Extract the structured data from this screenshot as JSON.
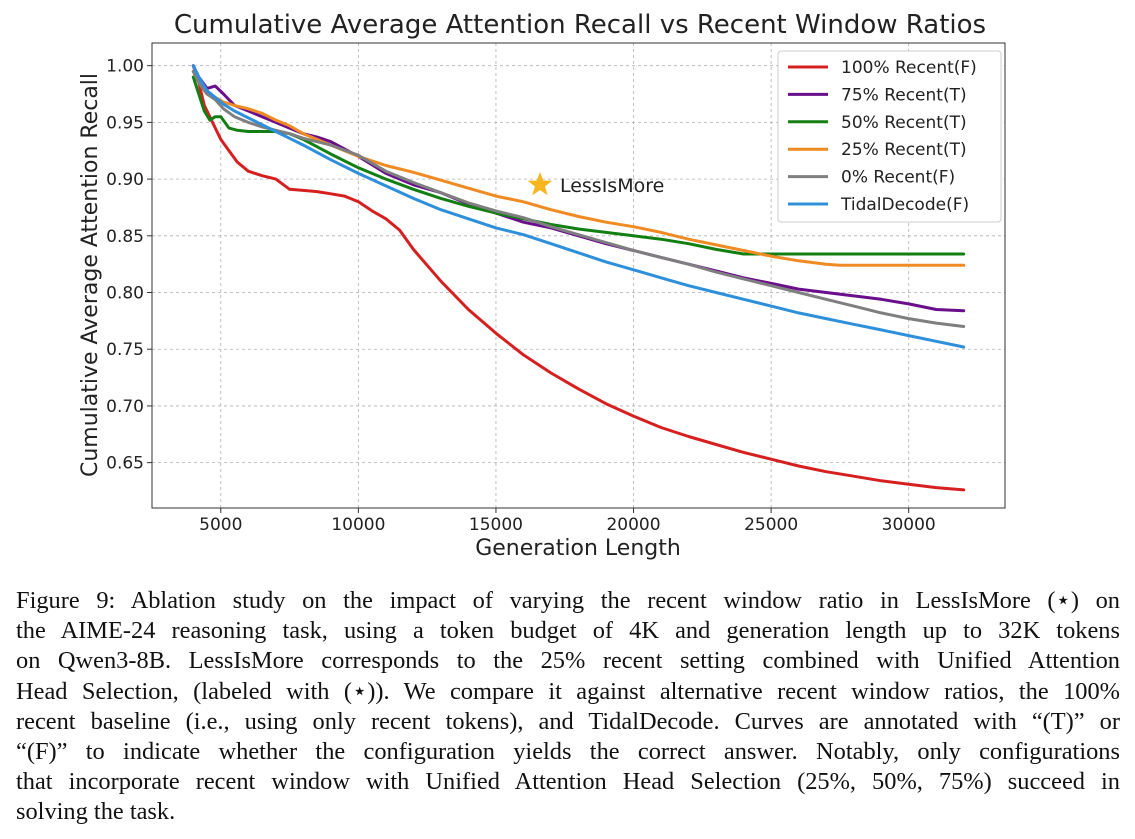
{
  "chart_data": {
    "type": "line",
    "title": "Cumulative Average Attention Recall vs Recent Window Ratios",
    "xlabel": "Generation Length",
    "ylabel": "Cumulative Average Attention Recall",
    "xlim": [
      2500,
      33500
    ],
    "ylim": [
      0.61,
      1.02
    ],
    "xticks": [
      5000,
      10000,
      15000,
      20000,
      25000,
      30000
    ],
    "xtick_labels": [
      "5000",
      "10000",
      "15000",
      "20000",
      "25000",
      "30000"
    ],
    "yticks": [
      0.65,
      0.7,
      0.75,
      0.8,
      0.85,
      0.9,
      0.95,
      1.0
    ],
    "ytick_labels": [
      "0.65",
      "0.70",
      "0.75",
      "0.80",
      "0.85",
      "0.90",
      "0.95",
      "1.00"
    ],
    "grid": true,
    "legend_position": "top-right",
    "series": [
      {
        "name": "100% Recent(F)",
        "color": "#d62020",
        "x": [
          4000,
          4200,
          4400,
          4600,
          4800,
          5000,
          5300,
          5600,
          6000,
          6500,
          7000,
          7500,
          8000,
          8500,
          9000,
          9500,
          10000,
          10500,
          11000,
          11500,
          12000,
          13000,
          14000,
          15000,
          16000,
          17000,
          18000,
          19000,
          20000,
          21000,
          22000,
          23000,
          24000,
          25000,
          26000,
          27000,
          28000,
          29000,
          30000,
          31000,
          32000
        ],
        "values": [
          1.0,
          0.985,
          0.965,
          0.955,
          0.945,
          0.935,
          0.925,
          0.915,
          0.907,
          0.903,
          0.9,
          0.891,
          0.89,
          0.889,
          0.887,
          0.885,
          0.88,
          0.872,
          0.865,
          0.855,
          0.838,
          0.81,
          0.785,
          0.764,
          0.745,
          0.729,
          0.715,
          0.702,
          0.691,
          0.681,
          0.673,
          0.666,
          0.659,
          0.653,
          0.647,
          0.642,
          0.638,
          0.634,
          0.631,
          0.628,
          0.626
        ]
      },
      {
        "name": "75% Recent(T)",
        "color": "#6a0e8c",
        "x": [
          4000,
          4200,
          4500,
          4800,
          5100,
          5500,
          6000,
          6500,
          7000,
          7500,
          8000,
          8500,
          9000,
          10000,
          11000,
          12000,
          13000,
          14000,
          15000,
          16000,
          17000,
          18000,
          19000,
          20000,
          21000,
          22000,
          23000,
          24000,
          25000,
          26000,
          27000,
          28000,
          29000,
          30000,
          31000,
          32000
        ],
        "values": [
          1.0,
          0.99,
          0.98,
          0.982,
          0.975,
          0.965,
          0.96,
          0.955,
          0.95,
          0.945,
          0.94,
          0.937,
          0.933,
          0.92,
          0.905,
          0.895,
          0.888,
          0.878,
          0.87,
          0.862,
          0.857,
          0.85,
          0.843,
          0.837,
          0.831,
          0.825,
          0.819,
          0.813,
          0.808,
          0.803,
          0.8,
          0.797,
          0.794,
          0.79,
          0.785,
          0.784
        ]
      },
      {
        "name": "50% Recent(T)",
        "color": "#137f13",
        "x": [
          4000,
          4200,
          4400,
          4600,
          4800,
          5000,
          5300,
          5600,
          6000,
          6500,
          7000,
          7500,
          8000,
          9000,
          10000,
          11000,
          12000,
          13000,
          14000,
          15000,
          16000,
          17000,
          18000,
          19000,
          20000,
          21000,
          22000,
          23000,
          24000,
          25000,
          26000,
          27000,
          28000,
          30000,
          32000
        ],
        "values": [
          0.99,
          0.975,
          0.96,
          0.952,
          0.955,
          0.955,
          0.945,
          0.943,
          0.942,
          0.942,
          0.942,
          0.94,
          0.935,
          0.922,
          0.91,
          0.9,
          0.891,
          0.883,
          0.876,
          0.87,
          0.865,
          0.86,
          0.856,
          0.853,
          0.85,
          0.847,
          0.843,
          0.838,
          0.834,
          0.834,
          0.834,
          0.834,
          0.834,
          0.834,
          0.834
        ]
      },
      {
        "name": "25% Recent(T)",
        "color": "#f08a22",
        "x": [
          4000,
          4200,
          4500,
          4800,
          5100,
          5500,
          6000,
          6500,
          7000,
          7500,
          8000,
          9000,
          10000,
          11000,
          12000,
          13000,
          14000,
          15000,
          16000,
          17000,
          18000,
          19000,
          20000,
          21000,
          22000,
          23000,
          24000,
          25000,
          26000,
          27000,
          27500,
          28000,
          30000,
          32000
        ],
        "values": [
          0.995,
          0.985,
          0.975,
          0.972,
          0.968,
          0.965,
          0.962,
          0.958,
          0.952,
          0.947,
          0.94,
          0.93,
          0.92,
          0.912,
          0.906,
          0.899,
          0.892,
          0.885,
          0.88,
          0.873,
          0.867,
          0.862,
          0.858,
          0.853,
          0.847,
          0.842,
          0.837,
          0.832,
          0.828,
          0.825,
          0.824,
          0.824,
          0.824,
          0.824
        ]
      },
      {
        "name": "0% Recent(F)",
        "color": "#7f7f7f",
        "x": [
          4000,
          4200,
          4500,
          4800,
          5100,
          5500,
          6000,
          6500,
          7000,
          7500,
          8000,
          9000,
          10000,
          11000,
          12000,
          13000,
          14000,
          15000,
          16000,
          17000,
          18000,
          19000,
          20000,
          21000,
          22000,
          23000,
          24000,
          25000,
          26000,
          27000,
          28000,
          29000,
          30000,
          31000,
          32000
        ],
        "values": [
          0.995,
          0.985,
          0.975,
          0.97,
          0.962,
          0.955,
          0.95,
          0.946,
          0.943,
          0.94,
          0.936,
          0.93,
          0.921,
          0.907,
          0.897,
          0.888,
          0.879,
          0.872,
          0.866,
          0.858,
          0.851,
          0.844,
          0.837,
          0.831,
          0.825,
          0.818,
          0.812,
          0.806,
          0.8,
          0.794,
          0.788,
          0.782,
          0.777,
          0.773,
          0.77
        ]
      },
      {
        "name": "TidalDecode(F)",
        "color": "#2e8fdb",
        "x": [
          4000,
          4200,
          4500,
          4800,
          5100,
          5500,
          6000,
          6500,
          7000,
          7500,
          8000,
          9000,
          10000,
          11000,
          12000,
          13000,
          14000,
          15000,
          16000,
          17000,
          18000,
          19000,
          20000,
          21000,
          22000,
          23000,
          24000,
          25000,
          26000,
          27000,
          28000,
          29000,
          30000,
          31000,
          32000
        ],
        "values": [
          1.0,
          0.99,
          0.978,
          0.972,
          0.966,
          0.96,
          0.954,
          0.948,
          0.942,
          0.936,
          0.93,
          0.917,
          0.905,
          0.894,
          0.883,
          0.873,
          0.865,
          0.857,
          0.851,
          0.843,
          0.835,
          0.827,
          0.82,
          0.813,
          0.806,
          0.8,
          0.794,
          0.788,
          0.782,
          0.777,
          0.772,
          0.767,
          0.762,
          0.757,
          0.752
        ]
      }
    ],
    "annotation": {
      "label": "LessIsMore",
      "x": 16600,
      "y": 0.895,
      "marker_color": "#f5b61e"
    }
  },
  "caption": {
    "lines": [
      "Figure 9: Ablation study on the impact of varying the recent window ratio in LessIsMore (⋆) on",
      "the AIME-24 reasoning task, using a token budget of 4K and generation length up to 32K tokens",
      "on Qwen3-8B. LessIsMore corresponds to the 25% recent setting combined with Unified Attention",
      "Head Selection, (labeled with (⋆)). We compare it against alternative recent window ratios, the 100%",
      "recent baseline (i.e., using only recent tokens), and TidalDecode. Curves are annotated with “(T)” or",
      "“(F)” to indicate whether the configuration yields the correct answer. Notably, only configurations",
      "that incorporate recent window with Unified Attention Head Selection (25%, 50%, 75%) succeed in",
      "solving the task."
    ]
  }
}
